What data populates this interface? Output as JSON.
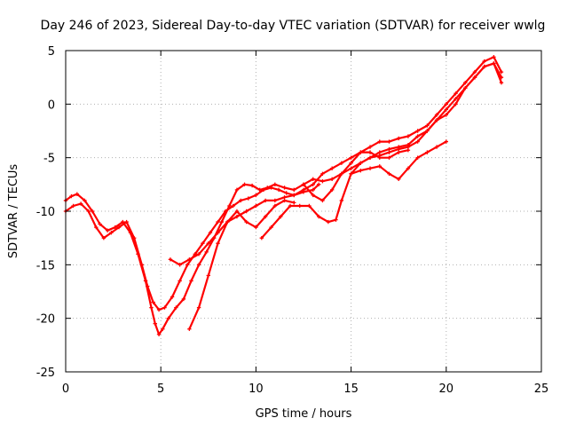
{
  "chart_data": {
    "type": "scatter",
    "title": "Day 246 of 2023, Sidereal Day-to-day VTEC variation (SDTVAR) for receiver wwlg",
    "xlabel": "GPS time / hours",
    "ylabel": "SDTVAR / TECUs",
    "xlim": [
      0,
      25
    ],
    "ylim": [
      -25,
      5
    ],
    "xticks": [
      "0",
      "5",
      "10",
      "15",
      "20",
      "25"
    ],
    "yticks": [
      "5",
      "0",
      "-5",
      "-10",
      "-15",
      "-20",
      "-25"
    ],
    "grid": true,
    "marker": "plus",
    "color": "#ff0000",
    "series": [
      {
        "name": "track-1",
        "x": [
          0,
          0.3,
          0.6,
          1.0,
          1.4,
          1.8,
          2.2,
          2.6,
          3.0,
          3.4,
          3.8,
          4.2,
          4.5,
          4.7,
          4.9,
          5.1,
          5.4,
          5.8,
          6.2,
          6.6,
          7.0,
          7.4,
          7.8,
          8.2,
          8.6,
          9.0,
          9.4,
          9.8,
          10.2,
          10.6,
          11.0,
          11.5,
          12.0,
          12.5,
          13.0,
          13.5,
          14.0,
          14.5,
          15.0,
          15.5,
          16.0,
          16.5,
          17.0,
          17.5,
          18.0,
          18.5,
          19.0,
          19.5,
          20.0,
          20.5,
          21.0,
          21.5,
          22.0,
          22.5,
          22.9
        ],
        "y": [
          -9.0,
          -8.6,
          -8.4,
          -9.0,
          -10.0,
          -11.2,
          -11.8,
          -11.5,
          -11.0,
          -12.0,
          -14.0,
          -16.5,
          -19.0,
          -20.5,
          -21.5,
          -21.0,
          -20.0,
          -19.0,
          -18.2,
          -16.5,
          -15.0,
          -13.8,
          -12.5,
          -11.0,
          -9.5,
          -8.0,
          -7.5,
          -7.6,
          -8.0,
          -7.8,
          -7.5,
          -7.8,
          -8.0,
          -7.5,
          -7.0,
          -7.2,
          -7.0,
          -6.5,
          -6.0,
          -5.5,
          -5.0,
          -4.5,
          -4.2,
          -4.0,
          -3.8,
          -3.0,
          -2.5,
          -1.5,
          -0.5,
          0.5,
          1.5,
          2.5,
          3.5,
          3.8,
          2.5
        ]
      },
      {
        "name": "track-2",
        "x": [
          0,
          0.4,
          0.8,
          1.2,
          1.6,
          2.0,
          2.4,
          2.8,
          3.2,
          3.6,
          4.0,
          4.3,
          4.6,
          4.9,
          5.2,
          5.6,
          6.0,
          6.4,
          6.8,
          7.2,
          7.6,
          8.0,
          8.4,
          8.8,
          9.2,
          9.6,
          10.0,
          10.4,
          10.8,
          11.2,
          11.6,
          12.0,
          12.5,
          13.0,
          13.5,
          14.0,
          14.5,
          15.0,
          15.5,
          16.0,
          16.5,
          17.0,
          17.5,
          18.0,
          18.5,
          19.0,
          19.5,
          20.0,
          20.5,
          21.0,
          21.5,
          22.0,
          22.5,
          22.9
        ],
        "y": [
          -10.0,
          -9.5,
          -9.3,
          -10.0,
          -11.5,
          -12.5,
          -12.0,
          -11.5,
          -11.0,
          -12.5,
          -15.0,
          -17.0,
          -18.5,
          -19.2,
          -19.0,
          -18.0,
          -16.5,
          -15.0,
          -14.0,
          -13.0,
          -12.0,
          -11.0,
          -10.0,
          -9.5,
          -9.0,
          -8.8,
          -8.5,
          -8.0,
          -7.8,
          -8.0,
          -8.3,
          -8.5,
          -8.0,
          -7.5,
          -6.5,
          -6.0,
          -5.5,
          -5.0,
          -4.5,
          -4.0,
          -3.5,
          -3.5,
          -3.2,
          -3.0,
          -2.5,
          -2.0,
          -1.0,
          0.0,
          1.0,
          2.0,
          3.0,
          4.0,
          4.4,
          3.0
        ]
      },
      {
        "name": "track-3",
        "x": [
          5.5,
          6.0,
          6.5,
          7.0,
          7.5,
          8.0,
          8.5,
          9.0,
          9.5,
          10.0,
          10.5,
          11.0,
          11.5,
          12.0,
          12.5,
          13.0,
          13.3
        ],
        "y": [
          -14.5,
          -15.0,
          -14.5,
          -14.0,
          -13.0,
          -12.0,
          -11.0,
          -10.5,
          -10.0,
          -9.5,
          -9.0,
          -9.0,
          -8.7,
          -8.5,
          -8.2,
          -8.0,
          -7.5
        ]
      },
      {
        "name": "track-4",
        "x": [
          6.5,
          7.0,
          7.5,
          8.0,
          8.5,
          9.0,
          9.5,
          10.0,
          10.5,
          11.0,
          11.5,
          12.0
        ],
        "y": [
          -21.0,
          -19.0,
          -16.0,
          -13.0,
          -11.0,
          -10.0,
          -11.0,
          -11.5,
          -10.5,
          -9.5,
          -9.0,
          -9.2
        ]
      },
      {
        "name": "track-5",
        "x": [
          10.3,
          10.8,
          11.3,
          11.8,
          12.3,
          12.8,
          13.3,
          13.8,
          14.2,
          14.5,
          15.0,
          15.5,
          16.0,
          16.5,
          17.0,
          17.5,
          18.0,
          18.5,
          19.0,
          19.5,
          20.0,
          20.5,
          21.0,
          21.5,
          22.0,
          22.5,
          22.9
        ],
        "y": [
          -12.5,
          -11.5,
          -10.5,
          -9.5,
          -9.5,
          -9.5,
          -10.5,
          -11.0,
          -10.8,
          -9.0,
          -6.5,
          -5.5,
          -5.0,
          -4.8,
          -4.5,
          -4.2,
          -4.0,
          -3.5,
          -2.5,
          -1.5,
          -1.0,
          0.0,
          1.5,
          2.5,
          3.5,
          3.8,
          2.0
        ]
      },
      {
        "name": "track-6",
        "x": [
          12.5,
          13.0,
          13.5,
          14.0,
          14.5,
          15.0,
          15.5,
          16.0,
          16.5,
          17.0,
          17.5,
          18.0
        ],
        "y": [
          -7.5,
          -8.5,
          -9.0,
          -8.0,
          -6.5,
          -5.5,
          -4.5,
          -4.5,
          -5.0,
          -5.0,
          -4.5,
          -4.3
        ]
      },
      {
        "name": "track-7",
        "x": [
          15.0,
          15.5,
          16.0,
          16.5,
          17.0,
          17.5,
          18.0,
          18.5,
          19.0,
          19.5,
          20.0
        ],
        "y": [
          -6.5,
          -6.2,
          -6.0,
          -5.8,
          -6.5,
          -7.0,
          -6.0,
          -5.0,
          -4.5,
          -4.0,
          -3.5
        ]
      }
    ]
  }
}
